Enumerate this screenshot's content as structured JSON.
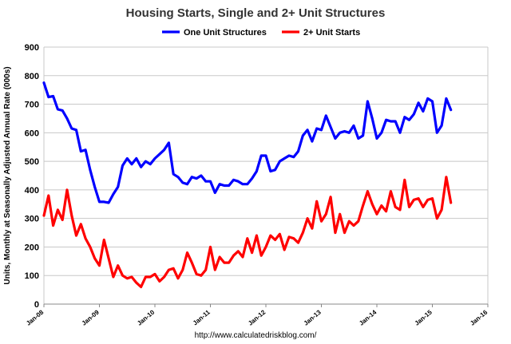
{
  "chart_data": {
    "type": "line",
    "title": "Housing Starts, Single and 2+ Unit Structures",
    "ylabel": "Units, Monthly at Seasonally Adjusted Annual Rate (000s)",
    "xlabel": "",
    "source": "http://www.calculatedriskblog.com/",
    "ylim": [
      0,
      900
    ],
    "yticks": [
      0,
      100,
      200,
      300,
      400,
      500,
      600,
      700,
      800,
      900
    ],
    "x_start": "Jan-08",
    "x_ticks": [
      "Jan-08",
      "Jan-09",
      "Jan-10",
      "Jan-11",
      "Jan-12",
      "Jan-13",
      "Jan-14",
      "Jan-15",
      "Jan-16"
    ],
    "grid": true,
    "legend_position": "top",
    "series": [
      {
        "name": "One Unit Structures",
        "color": "#0000FF",
        "values": [
          775,
          725,
          728,
          682,
          678,
          650,
          615,
          610,
          535,
          540,
          470,
          410,
          358,
          358,
          355,
          385,
          410,
          485,
          510,
          490,
          510,
          480,
          500,
          490,
          510,
          525,
          540,
          565,
          455,
          445,
          425,
          420,
          445,
          440,
          450,
          430,
          430,
          390,
          420,
          415,
          415,
          435,
          430,
          420,
          420,
          440,
          465,
          520,
          520,
          465,
          470,
          500,
          510,
          520,
          515,
          535,
          590,
          610,
          570,
          615,
          610,
          660,
          620,
          580,
          600,
          605,
          600,
          625,
          580,
          590,
          710,
          650,
          580,
          600,
          645,
          640,
          640,
          600,
          655,
          645,
          665,
          705,
          675,
          720,
          710,
          600,
          625,
          720,
          680
        ]
      },
      {
        "name": "2+ Unit Starts",
        "color": "#FF0000",
        "values": [
          310,
          380,
          275,
          330,
          295,
          400,
          310,
          240,
          280,
          230,
          200,
          160,
          135,
          225,
          160,
          95,
          135,
          100,
          90,
          95,
          75,
          60,
          95,
          95,
          105,
          80,
          95,
          120,
          125,
          90,
          120,
          180,
          145,
          105,
          100,
          120,
          200,
          120,
          165,
          145,
          145,
          170,
          185,
          165,
          230,
          180,
          240,
          170,
          200,
          240,
          225,
          245,
          190,
          235,
          230,
          215,
          250,
          300,
          265,
          360,
          290,
          315,
          375,
          250,
          315,
          250,
          290,
          275,
          290,
          345,
          395,
          350,
          315,
          345,
          325,
          395,
          340,
          330,
          435,
          340,
          365,
          370,
          340,
          365,
          370,
          300,
          330,
          445,
          355
        ]
      }
    ]
  }
}
